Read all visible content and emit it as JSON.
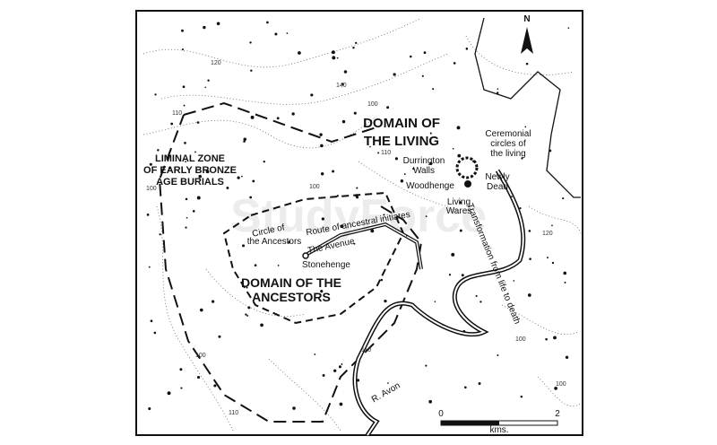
{
  "map": {
    "north": "N",
    "domain_living": [
      "DOMAIN OF",
      "THE LIVING"
    ],
    "ceremonial": [
      "Ceremonial",
      "circles of",
      "the living"
    ],
    "durrington": [
      "Durrington",
      "Walls"
    ],
    "woodhenge": "Woodhenge",
    "newly_dead": [
      "Newly",
      "Dead"
    ],
    "living_wares": [
      "Living",
      "Wares"
    ],
    "liminal": [
      "LIMINAL ZONE",
      "OF EARLY BRONZE",
      "AGE BURIALS"
    ],
    "circle_ancestors": [
      "Circle of",
      "the Ancestors"
    ],
    "route": "Route of ancestral initiates",
    "avenue": "The Avenue",
    "stonehenge": "Stonehenge",
    "domain_ancestors": [
      "DOMAIN OF THE",
      "ANCESTORS"
    ],
    "transformation": "Transformation from life to death",
    "river": "R. Avon",
    "scale": {
      "start": "0",
      "unit": "kms.",
      "end": "2"
    },
    "contour_labels": [
      "120",
      "140",
      "110",
      "100",
      "100",
      "110",
      "100",
      "120",
      "100",
      "110",
      "100",
      "110",
      "100"
    ],
    "watermark": "StudyForce"
  }
}
